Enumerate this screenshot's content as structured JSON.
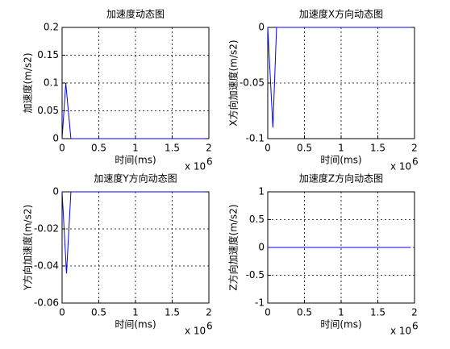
{
  "chart_data": [
    {
      "type": "line",
      "title": "加速度动态图",
      "xlabel": "时间(ms)",
      "ylabel": "加速度(m/s2)",
      "x": [
        0,
        0.05,
        0.12,
        1.95
      ],
      "values": [
        0,
        0.1,
        0,
        0
      ],
      "color": "#0000ff",
      "xlim": [
        0,
        2
      ],
      "xticks": [
        0,
        0.5,
        1,
        1.5,
        2
      ],
      "ylim": [
        0,
        0.2
      ],
      "yticks": [
        0,
        0.05,
        0.1,
        0.15,
        0.2
      ],
      "x_multiplier": {
        "base": "x 10",
        "exponent": "6"
      },
      "grid": true
    },
    {
      "type": "line",
      "title": "加速度X方向动态图",
      "xlabel": "时间(ms)",
      "ylabel": "X方向加速度(m/s2)",
      "x": [
        0,
        0.07,
        0.12,
        1.95
      ],
      "values": [
        0,
        -0.09,
        0,
        0
      ],
      "color": "#0000ff",
      "xlim": [
        0,
        2
      ],
      "xticks": [
        0,
        0.5,
        1,
        1.5,
        2
      ],
      "ylim": [
        -0.1,
        0
      ],
      "yticks": [
        -0.1,
        -0.05,
        0
      ],
      "x_multiplier": {
        "base": "x 10",
        "exponent": "6"
      },
      "grid": true
    },
    {
      "type": "line",
      "title": "加速度Y方向动态图",
      "xlabel": "时间(ms)",
      "ylabel": "Y方向加速度(m/s2)",
      "x": [
        0,
        0.06,
        0.12,
        1.95
      ],
      "values": [
        0,
        -0.044,
        0,
        0
      ],
      "color": "#0000ff",
      "xlim": [
        0,
        2
      ],
      "xticks": [
        0,
        0.5,
        1,
        1.5,
        2
      ],
      "ylim": [
        -0.06,
        0
      ],
      "yticks": [
        -0.06,
        -0.04,
        -0.02,
        0
      ],
      "x_multiplier": {
        "base": "x 10",
        "exponent": "6"
      },
      "grid": true
    },
    {
      "type": "line",
      "title": "加速度Z方向动态图",
      "xlabel": "时间(ms)",
      "ylabel": "Z方向加速度(m/s2)",
      "x": [
        0,
        1.95
      ],
      "values": [
        0,
        0
      ],
      "color": "#0000ff",
      "xlim": [
        0,
        2
      ],
      "xticks": [
        0,
        0.5,
        1,
        1.5,
        2
      ],
      "ylim": [
        -1,
        1
      ],
      "yticks": [
        -1,
        -0.5,
        0,
        0.5,
        1
      ],
      "x_multiplier": {
        "base": "x 10",
        "exponent": "6"
      },
      "grid": true
    }
  ]
}
